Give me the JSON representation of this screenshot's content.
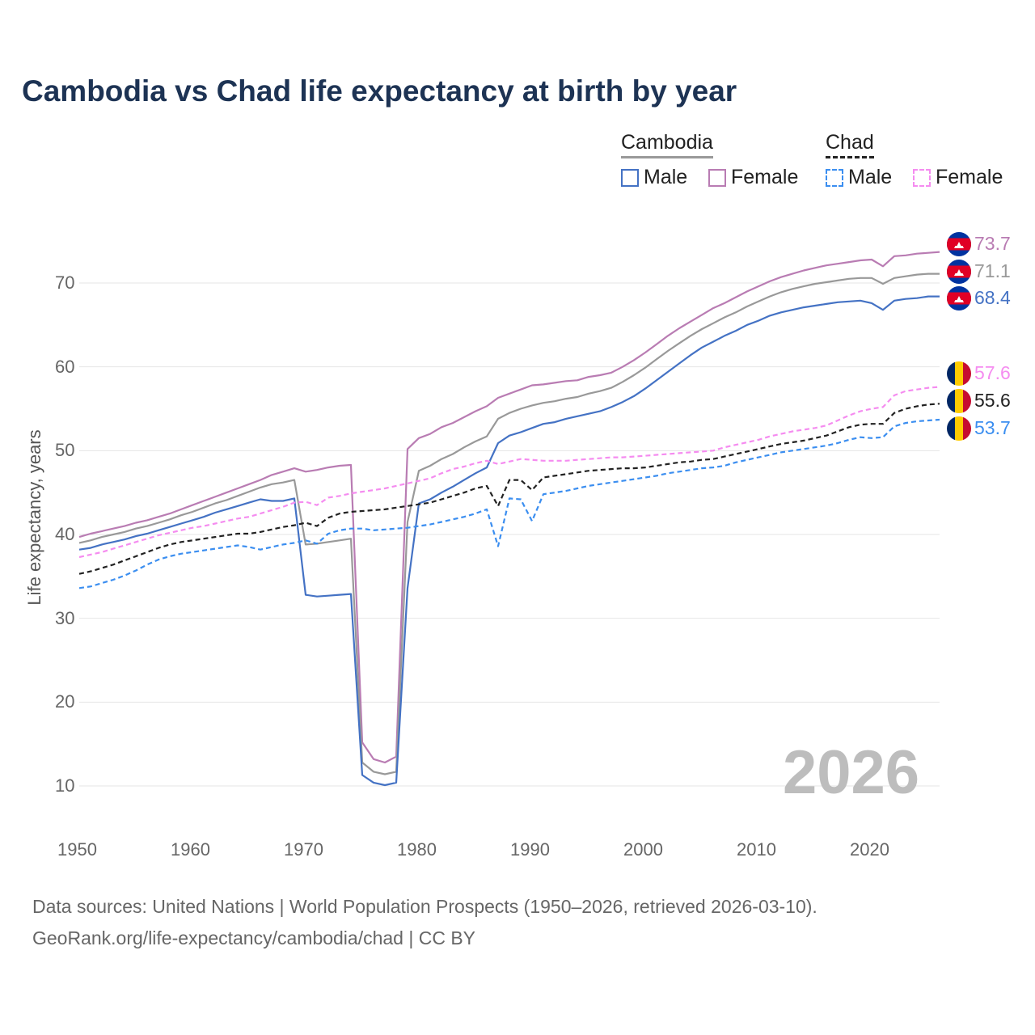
{
  "title": "Cambodia vs Chad life expectancy at birth by year",
  "legend": {
    "groups": [
      {
        "name": "Cambodia",
        "style": "solid",
        "items": [
          {
            "label": "Male",
            "color": "#4472c4"
          },
          {
            "label": "Female",
            "color": "#b97cb3"
          }
        ]
      },
      {
        "name": "Chad",
        "style": "dashed",
        "items": [
          {
            "label": "Male",
            "color": "#3b8ef0"
          },
          {
            "label": "Female",
            "color": "#f58cf0"
          }
        ]
      }
    ]
  },
  "watermark_year": "2026",
  "end_labels": [
    {
      "text": "73.7",
      "color": "#b97cb3",
      "flag": "cambodia"
    },
    {
      "text": "71.1",
      "color": "#999999",
      "flag": "cambodia"
    },
    {
      "text": "68.4",
      "color": "#4472c4",
      "flag": "cambodia"
    },
    {
      "text": "57.6",
      "color": "#f58cf0",
      "flag": "chad"
    },
    {
      "text": "55.6",
      "color": "#222222",
      "flag": "chad"
    },
    {
      "text": "53.7",
      "color": "#3b8ef0",
      "flag": "chad"
    }
  ],
  "footer": {
    "line1": "Data sources: United Nations | World Population Prospects (1950–2026, retrieved 2026-03-10).",
    "line2": "GeoRank.org/life-expectancy/cambodia/chad | CC BY"
  },
  "chart_data": {
    "type": "line",
    "title": "Cambodia vs Chad life expectancy at birth by year",
    "xlabel": "",
    "ylabel": "Life expectancy, years",
    "xlim": [
      1950,
      2026
    ],
    "ylim": [
      5,
      75
    ],
    "x_ticks": [
      1950,
      1960,
      1970,
      1980,
      1990,
      2000,
      2010,
      2020
    ],
    "y_ticks": [
      10,
      20,
      30,
      40,
      50,
      60,
      70
    ],
    "x": [
      1950,
      1951,
      1952,
      1953,
      1954,
      1955,
      1956,
      1957,
      1958,
      1959,
      1960,
      1961,
      1962,
      1963,
      1964,
      1965,
      1966,
      1967,
      1968,
      1969,
      1970,
      1971,
      1972,
      1973,
      1974,
      1975,
      1976,
      1977,
      1978,
      1979,
      1980,
      1981,
      1982,
      1983,
      1984,
      1985,
      1986,
      1987,
      1988,
      1989,
      1990,
      1991,
      1992,
      1993,
      1994,
      1995,
      1996,
      1997,
      1998,
      1999,
      2000,
      2001,
      2002,
      2003,
      2004,
      2005,
      2006,
      2007,
      2008,
      2009,
      2010,
      2011,
      2012,
      2013,
      2014,
      2015,
      2016,
      2017,
      2018,
      2019,
      2020,
      2021,
      2022,
      2023,
      2024,
      2025,
      2026
    ],
    "series": [
      {
        "name": "Cambodia Female",
        "color": "#b97cb3",
        "dash": false,
        "values": [
          39.7,
          40.1,
          40.4,
          40.7,
          41.0,
          41.4,
          41.7,
          42.1,
          42.5,
          43.0,
          43.5,
          44.0,
          44.5,
          45.0,
          45.5,
          46.0,
          46.5,
          47.1,
          47.5,
          47.9,
          47.5,
          47.7,
          48.0,
          48.2,
          48.3,
          15.2,
          13.2,
          12.8,
          13.5,
          50.2,
          51.5,
          52.0,
          52.8,
          53.3,
          54.0,
          54.7,
          55.3,
          56.3,
          56.8,
          57.3,
          57.8,
          57.9,
          58.1,
          58.3,
          58.4,
          58.8,
          59.0,
          59.3,
          60.0,
          60.8,
          61.7,
          62.7,
          63.7,
          64.6,
          65.4,
          66.2,
          67.0,
          67.6,
          68.3,
          69.0,
          69.6,
          70.2,
          70.7,
          71.1,
          71.5,
          71.8,
          72.1,
          72.3,
          72.5,
          72.7,
          72.8,
          72.0,
          73.2,
          73.3,
          73.5,
          73.6,
          73.7
        ]
      },
      {
        "name": "Cambodia Total",
        "color": "#999999",
        "dash": false,
        "values": [
          39.0,
          39.3,
          39.7,
          40.0,
          40.3,
          40.7,
          41.0,
          41.4,
          41.8,
          42.3,
          42.7,
          43.2,
          43.7,
          44.1,
          44.6,
          45.1,
          45.6,
          46.0,
          46.2,
          46.5,
          38.8,
          38.9,
          39.1,
          39.3,
          39.5,
          12.8,
          11.7,
          11.4,
          11.7,
          41.5,
          47.6,
          48.2,
          49.0,
          49.6,
          50.4,
          51.1,
          51.7,
          53.8,
          54.5,
          55.0,
          55.4,
          55.7,
          55.9,
          56.2,
          56.4,
          56.8,
          57.1,
          57.5,
          58.2,
          59.0,
          59.9,
          60.9,
          61.9,
          62.8,
          63.7,
          64.5,
          65.2,
          65.9,
          66.5,
          67.2,
          67.8,
          68.4,
          68.9,
          69.3,
          69.6,
          69.9,
          70.1,
          70.3,
          70.5,
          70.6,
          70.6,
          69.9,
          70.6,
          70.8,
          71.0,
          71.1,
          71.1
        ]
      },
      {
        "name": "Cambodia Male",
        "color": "#4472c4",
        "dash": false,
        "values": [
          38.2,
          38.4,
          38.8,
          39.1,
          39.4,
          39.8,
          40.1,
          40.5,
          40.9,
          41.3,
          41.7,
          42.1,
          42.6,
          43.0,
          43.4,
          43.8,
          44.2,
          44.0,
          44.0,
          44.3,
          32.8,
          32.6,
          32.7,
          32.8,
          32.9,
          11.3,
          10.4,
          10.1,
          10.4,
          33.6,
          43.7,
          44.2,
          45.0,
          45.7,
          46.5,
          47.3,
          48.0,
          50.9,
          51.8,
          52.2,
          52.7,
          53.2,
          53.4,
          53.8,
          54.1,
          54.4,
          54.7,
          55.2,
          55.8,
          56.5,
          57.4,
          58.4,
          59.4,
          60.4,
          61.4,
          62.3,
          63.0,
          63.7,
          64.3,
          65.0,
          65.5,
          66.1,
          66.5,
          66.8,
          67.1,
          67.3,
          67.5,
          67.7,
          67.8,
          67.9,
          67.6,
          66.8,
          67.9,
          68.1,
          68.2,
          68.4,
          68.4
        ]
      },
      {
        "name": "Chad Female",
        "color": "#f58cf0",
        "dash": true,
        "values": [
          37.3,
          37.6,
          37.9,
          38.3,
          38.7,
          39.1,
          39.5,
          39.9,
          40.2,
          40.5,
          40.8,
          41.0,
          41.3,
          41.6,
          41.9,
          42.1,
          42.5,
          42.9,
          43.3,
          43.8,
          43.9,
          43.5,
          44.4,
          44.6,
          44.9,
          45.1,
          45.3,
          45.5,
          45.8,
          46.1,
          46.4,
          46.7,
          47.3,
          47.8,
          48.1,
          48.5,
          48.8,
          48.4,
          48.7,
          49.0,
          48.9,
          48.8,
          48.8,
          48.8,
          48.9,
          49.0,
          49.1,
          49.2,
          49.2,
          49.3,
          49.4,
          49.5,
          49.6,
          49.7,
          49.8,
          49.9,
          50.0,
          50.4,
          50.7,
          51.0,
          51.3,
          51.7,
          52.0,
          52.3,
          52.5,
          52.7,
          53.0,
          53.6,
          54.2,
          54.7,
          55.0,
          55.2,
          56.6,
          57.1,
          57.3,
          57.5,
          57.6
        ]
      },
      {
        "name": "Chad Total",
        "color": "#222222",
        "dash": true,
        "values": [
          35.3,
          35.6,
          36.0,
          36.4,
          36.9,
          37.4,
          37.9,
          38.4,
          38.8,
          39.1,
          39.3,
          39.5,
          39.7,
          39.9,
          40.1,
          40.1,
          40.3,
          40.6,
          40.9,
          41.1,
          41.4,
          41.0,
          42.0,
          42.5,
          42.7,
          42.8,
          42.9,
          43.0,
          43.2,
          43.4,
          43.6,
          43.8,
          44.2,
          44.6,
          45.0,
          45.5,
          45.8,
          43.4,
          46.5,
          46.5,
          45.3,
          46.8,
          47.0,
          47.2,
          47.4,
          47.6,
          47.7,
          47.8,
          47.9,
          47.9,
          48.0,
          48.2,
          48.4,
          48.6,
          48.7,
          48.9,
          49.0,
          49.3,
          49.6,
          49.9,
          50.2,
          50.5,
          50.8,
          51.0,
          51.2,
          51.5,
          51.8,
          52.3,
          52.8,
          53.1,
          53.2,
          53.2,
          54.5,
          55.0,
          55.3,
          55.5,
          55.6
        ]
      },
      {
        "name": "Chad Male",
        "color": "#3b8ef0",
        "dash": true,
        "values": [
          33.6,
          33.8,
          34.2,
          34.6,
          35.1,
          35.7,
          36.4,
          37.0,
          37.4,
          37.7,
          37.9,
          38.1,
          38.3,
          38.5,
          38.7,
          38.5,
          38.2,
          38.5,
          38.8,
          39.0,
          39.3,
          38.9,
          40.1,
          40.5,
          40.7,
          40.7,
          40.5,
          40.6,
          40.7,
          40.8,
          41.0,
          41.2,
          41.5,
          41.8,
          42.1,
          42.5,
          43.0,
          38.6,
          44.3,
          44.2,
          41.6,
          44.8,
          45.0,
          45.2,
          45.5,
          45.8,
          46.0,
          46.2,
          46.4,
          46.6,
          46.8,
          47.0,
          47.3,
          47.5,
          47.7,
          47.9,
          48.0,
          48.2,
          48.6,
          48.9,
          49.2,
          49.5,
          49.8,
          50.0,
          50.2,
          50.4,
          50.6,
          50.9,
          51.3,
          51.6,
          51.5,
          51.6,
          52.9,
          53.3,
          53.5,
          53.6,
          53.7
        ]
      }
    ],
    "legend_position": "top-right"
  }
}
